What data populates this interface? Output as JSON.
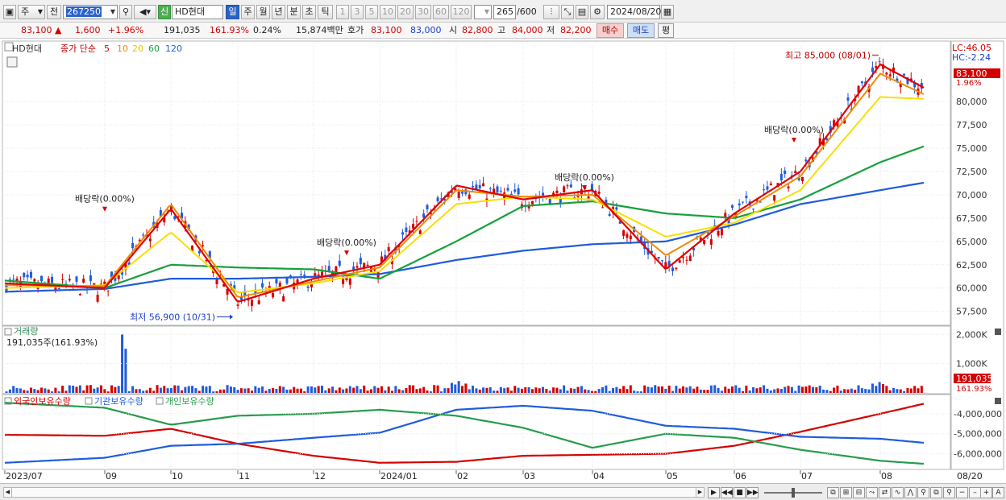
{
  "toolbar": {
    "period_label": "주",
    "type_label": "전",
    "code": "267250",
    "badge": "신",
    "name": "HD현대",
    "periods": [
      "일",
      "주",
      "월",
      "년",
      "분",
      "초",
      "틱"
    ],
    "minutes": [
      "1",
      "3",
      "5",
      "10",
      "20",
      "30",
      "60",
      "120"
    ],
    "count": "265",
    "count_total": "/600",
    "date": "2024/08/20"
  },
  "quote": {
    "price": "83,100",
    "change": "1,600",
    "pct": "+1.96%",
    "volume": "191,035",
    "vol_pct": "161.93%",
    "turnover": "0.24%",
    "amount": "15,874백만",
    "ask_label": "호가",
    "ask": "83,100",
    "bid": "83,000",
    "open_label": "시",
    "open": "82,800",
    "high_label": "고",
    "high": "84,000",
    "low_label": "저",
    "low": "82,200",
    "buy_label": "매수",
    "sell_label": "매도",
    "avg_label": "평"
  },
  "price_panel": {
    "name_tag": "HD현대",
    "legend_label": "종가 단순",
    "ma_periods": [
      "5",
      "10",
      "20",
      "60",
      "120"
    ],
    "ma_colors": [
      "#e00000",
      "#f08a00",
      "#f5e000",
      "#15a03c",
      "#1f5bdc"
    ],
    "lc": "LC:46.05",
    "hc": "HC:-2.24",
    "price_tag": "83,100",
    "pct_tag": "1.96%",
    "high_note": "최고 85,000 (08/01)",
    "low_note": "최저 56,900 (10/31)",
    "dividends": [
      "배당락(0.00%)",
      "배당락(0.00%)",
      "배당락(0.00%)",
      "배당락(0.00%)"
    ]
  },
  "volume_panel": {
    "title": "거래량",
    "value_line": "191,035주(161.93%)",
    "tag_value": "191,035",
    "tag_pct": "161.93%"
  },
  "holding_panel": {
    "series_labels": [
      "외국인보유수량",
      "기관보유수량",
      "개인보유수량"
    ],
    "series_colors": [
      "#d40000",
      "#1f5bdc",
      "#259c4c"
    ]
  },
  "xaxis": {
    "labels": [
      "2023/07",
      "09",
      "10",
      "11",
      "12",
      "2024/01",
      "02",
      "03",
      "04",
      "05",
      "06",
      "07",
      "08"
    ],
    "right_label": "08/20"
  },
  "chart_data": [
    {
      "type": "candlestick",
      "title": "HD현대",
      "yaxis_ticks": [
        57500,
        60000,
        62500,
        65000,
        67500,
        70000,
        72500,
        75000,
        77500,
        80000
      ],
      "ylim": [
        56000,
        86500
      ],
      "x_range": [
        "2023/07",
        "2024/08/20"
      ],
      "series": [
        {
          "name": "5",
          "x": [
            "2023/07",
            "09",
            "10",
            "11",
            "12",
            "2024/01",
            "02",
            "03",
            "04",
            "05",
            "06",
            "07",
            "08",
            "08/20"
          ],
          "values": [
            60500,
            60000,
            68500,
            58500,
            61000,
            62500,
            71000,
            69500,
            70500,
            62000,
            68000,
            72500,
            84000,
            81500
          ]
        },
        {
          "name": "10",
          "x": [
            "2023/07",
            "09",
            "10",
            "11",
            "12",
            "2024/01",
            "02",
            "03",
            "04",
            "05",
            "06",
            "07",
            "08",
            "08/20"
          ],
          "values": [
            60300,
            60200,
            69000,
            59000,
            60700,
            62200,
            70500,
            69800,
            70000,
            63500,
            67700,
            72000,
            83000,
            80800
          ]
        },
        {
          "name": "20",
          "x": [
            "2023/07",
            "09",
            "10",
            "11",
            "12",
            "2024/01",
            "02",
            "03",
            "04",
            "05",
            "06",
            "07",
            "08",
            "08/20"
          ],
          "values": [
            60000,
            60300,
            66000,
            59500,
            60500,
            61800,
            69000,
            69800,
            69500,
            65500,
            67000,
            70500,
            80500,
            80300
          ]
        },
        {
          "name": "60",
          "x": [
            "2023/07",
            "09",
            "10",
            "11",
            "12",
            "2024/01",
            "02",
            "03",
            "04",
            "05",
            "06",
            "07",
            "08",
            "08/20"
          ],
          "values": [
            60800,
            60000,
            62500,
            62200,
            62000,
            61000,
            65000,
            68800,
            69300,
            68000,
            67500,
            69500,
            73500,
            75200
          ]
        },
        {
          "name": "120",
          "x": [
            "2023/07",
            "09",
            "10",
            "11",
            "12",
            "2024/01",
            "02",
            "03",
            "04",
            "05",
            "06",
            "07",
            "08",
            "08/20"
          ],
          "values": [
            59600,
            59900,
            61000,
            61000,
            61200,
            61500,
            63000,
            64000,
            64700,
            65000,
            66800,
            69000,
            70500,
            71300
          ]
        }
      ],
      "annotations": [
        {
          "label": "최고 85,000 (08/01)",
          "x": "08/01",
          "y": 85000
        },
        {
          "label": "최저 56,900 (10/31)",
          "x": "10/31",
          "y": 56900
        },
        {
          "label": "배당락(0.00%)",
          "x": "09",
          "y": 68900
        },
        {
          "label": "배당락(0.00%)",
          "x": "2023/12",
          "y": 64200
        },
        {
          "label": "배당락(0.00%)",
          "x": "2024/03",
          "y": 71200
        },
        {
          "label": "배당락(0.00%)",
          "x": "2024/06",
          "y": 76300
        }
      ],
      "last": {
        "close": 83100,
        "change_pct": 1.96
      }
    },
    {
      "type": "bar",
      "title": "거래량",
      "yaxis_ticks": [
        1000000,
        2000000
      ],
      "ylim": [
        0,
        2200000
      ],
      "x_range": [
        "2023/07",
        "2024/08/20"
      ],
      "values_range": [
        50000,
        2000000
      ],
      "last": {
        "volume": 191035,
        "pct": 161.93
      }
    },
    {
      "type": "line",
      "yaxis_ticks": [
        -4000000,
        -5000000,
        -6000000
      ],
      "ylim": [
        -6700000,
        -3200000
      ],
      "series": [
        {
          "name": "외국인보유수량",
          "x": [
            "2023/07",
            "09",
            "10",
            "11",
            "12",
            "2024/01",
            "02",
            "03",
            "04",
            "05",
            "06",
            "07",
            "08",
            "08/20"
          ],
          "values": [
            -5050000,
            -5100000,
            -4750000,
            -5500000,
            -6100000,
            -6450000,
            -6400000,
            -6100000,
            -6050000,
            -6000000,
            -5600000,
            -4900000,
            -4000000,
            -3500000
          ]
        },
        {
          "name": "기관보유수량",
          "x": [
            "2023/07",
            "09",
            "10",
            "11",
            "12",
            "2024/01",
            "02",
            "03",
            "04",
            "05",
            "06",
            "07",
            "08",
            "08/20"
          ],
          "values": [
            -6450000,
            -6200000,
            -5600000,
            -5500000,
            -5200000,
            -4950000,
            -3800000,
            -3600000,
            -3850000,
            -4600000,
            -4750000,
            -5150000,
            -5250000,
            -5450000
          ]
        },
        {
          "name": "개인보유수량",
          "x": [
            "2023/07",
            "09",
            "10",
            "11",
            "12",
            "2024/01",
            "02",
            "03",
            "04",
            "05",
            "06",
            "07",
            "08",
            "08/20"
          ],
          "values": [
            -3450000,
            -3700000,
            -4550000,
            -4100000,
            -4000000,
            -3800000,
            -4100000,
            -4700000,
            -5700000,
            -5000000,
            -5200000,
            -5800000,
            -6350000,
            -6500000
          ]
        }
      ]
    }
  ]
}
